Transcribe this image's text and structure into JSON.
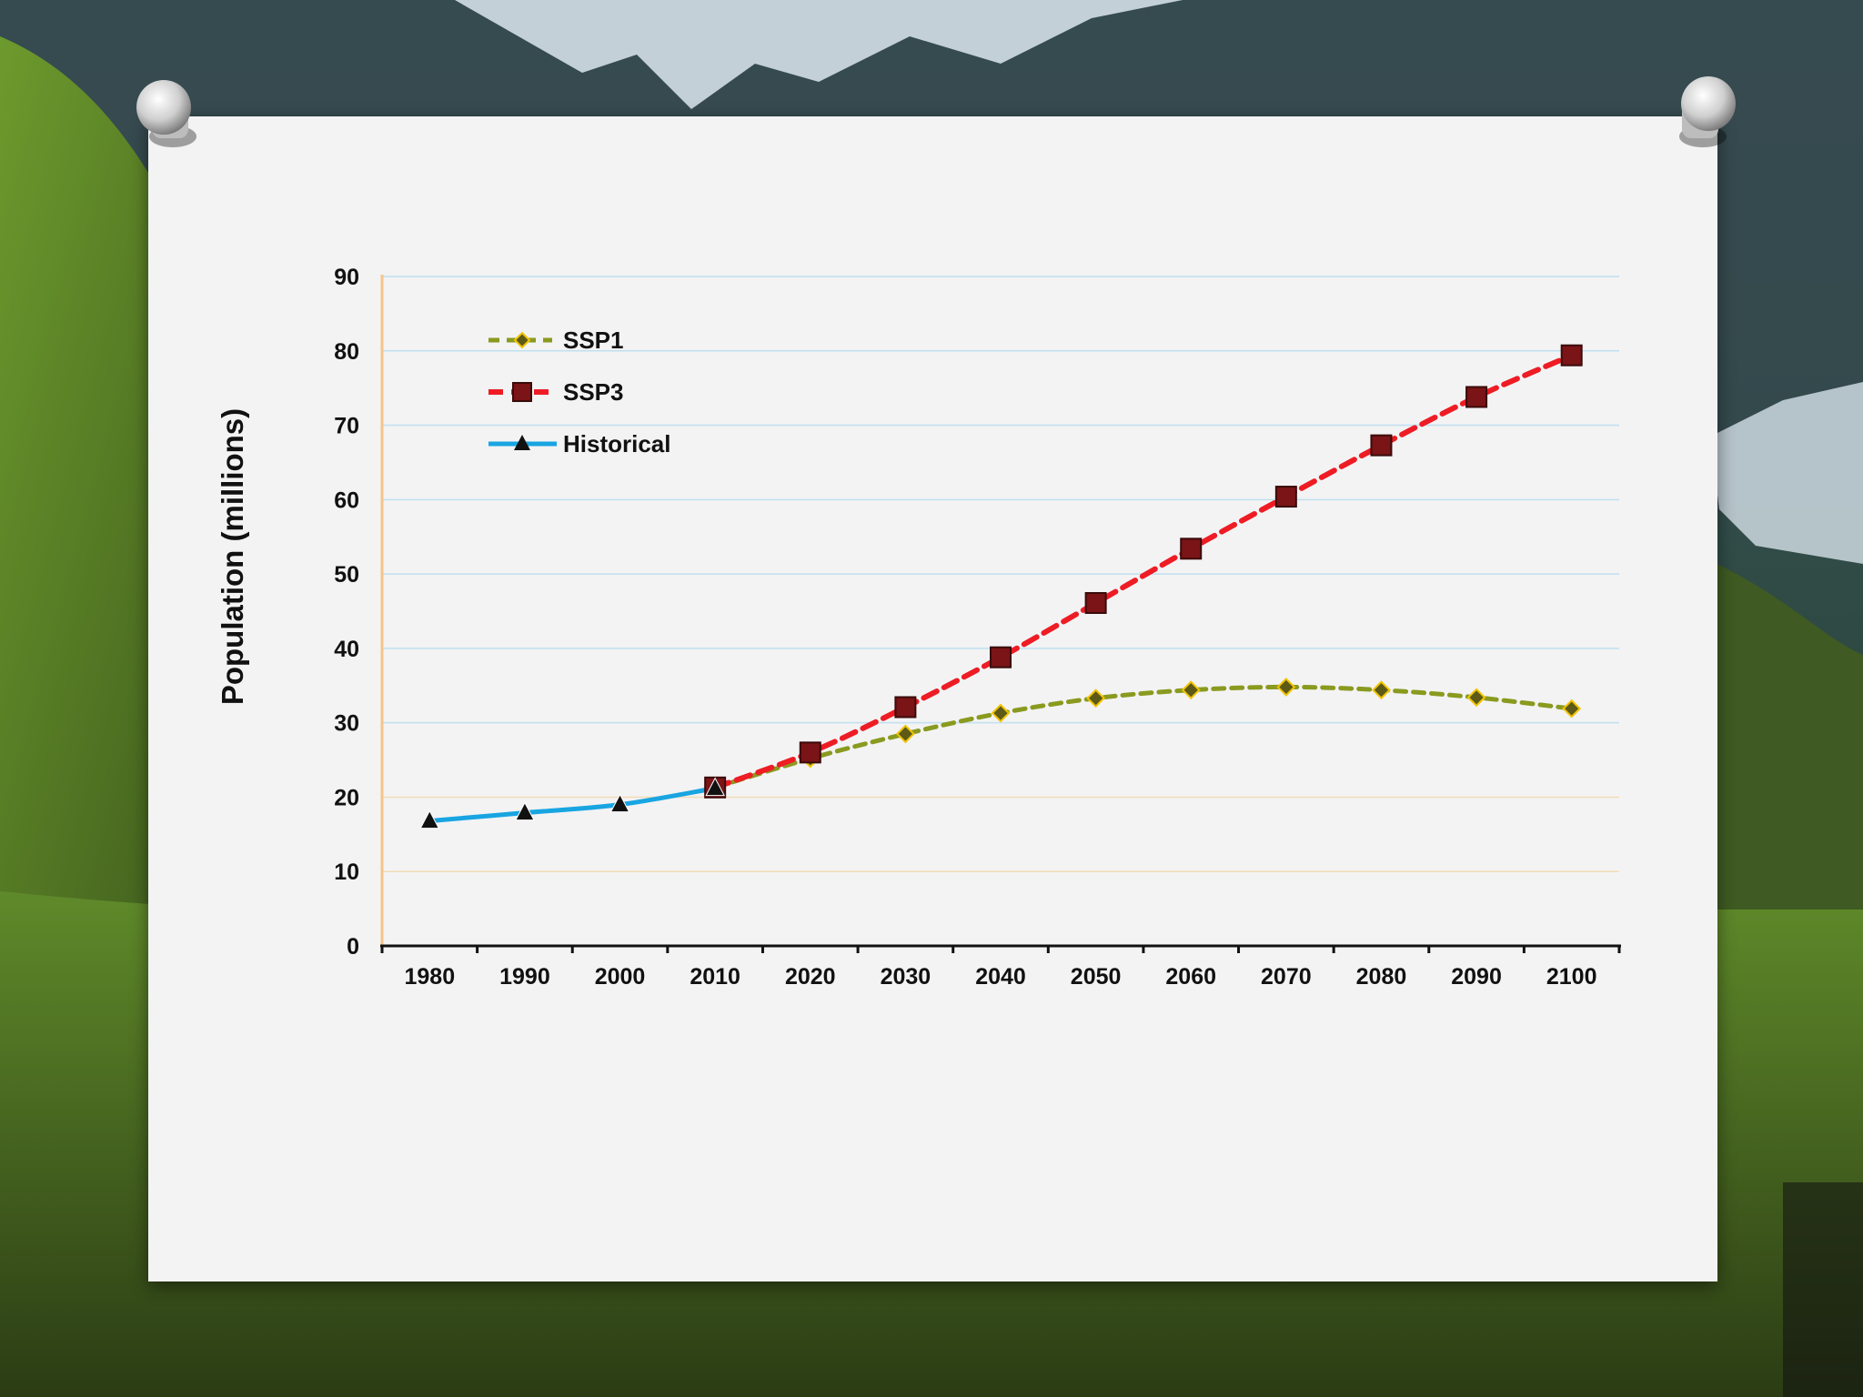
{
  "colors": {
    "ssp1_line": "#8a9a1f",
    "ssp1_marker_fill": "#5d5a18",
    "ssp1_marker_stroke": "#f2c400",
    "ssp3_line": "#ee1c24",
    "ssp3_marker_fill": "#7a1416",
    "ssp3_marker_stroke": "#3a0b0b",
    "historical_line": "#18a5e1",
    "historical_marker": "#111111",
    "grid_upper": "#bfe0ef",
    "grid_lower": "#f3dcb6",
    "y_axis": "#f5c48a",
    "x_axis": "#111111"
  },
  "chart_data": {
    "type": "line",
    "title": "",
    "xlabel": "",
    "ylabel": "Population (millions)",
    "ylim": [
      0,
      90
    ],
    "y_ticks": [
      "0",
      "10",
      "20",
      "30",
      "40",
      "50",
      "60",
      "70",
      "80",
      "90"
    ],
    "categories": [
      "1980",
      "1990",
      "2000",
      "2010",
      "2020",
      "2030",
      "2040",
      "2050",
      "2060",
      "2070",
      "2080",
      "2090",
      "2100"
    ],
    "legend": [
      "SSP1",
      "SSP3",
      "Historical"
    ],
    "series": [
      {
        "name": "SSP1",
        "style": "dashed",
        "marker": "diamond",
        "x": [
          "2010",
          "2020",
          "2030",
          "2040",
          "2050",
          "2060",
          "2070",
          "2080",
          "2090",
          "2100"
        ],
        "values": [
          21.3,
          25.2,
          28.5,
          31.3,
          33.3,
          34.4,
          34.8,
          34.4,
          33.4,
          31.9
        ]
      },
      {
        "name": "SSP3",
        "style": "dashed",
        "marker": "square",
        "x": [
          "2010",
          "2020",
          "2030",
          "2040",
          "2050",
          "2060",
          "2070",
          "2080",
          "2090",
          "2100"
        ],
        "values": [
          21.3,
          26.0,
          32.1,
          38.8,
          46.1,
          53.4,
          60.4,
          67.3,
          73.8,
          79.4
        ]
      },
      {
        "name": "Historical",
        "style": "solid",
        "marker": "triangle",
        "x": [
          "1980",
          "1990",
          "2000",
          "2010"
        ],
        "values": [
          16.8,
          17.9,
          19.0,
          21.2
        ]
      }
    ]
  }
}
